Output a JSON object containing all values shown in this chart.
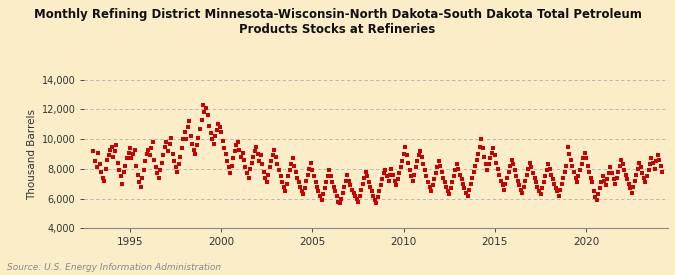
{
  "title": "Monthly Refining District Minnesota-Wisconsin-North Dakota-South Dakota Total Petroleum\nProducts Stocks at Refineries",
  "ylabel": "Thousand Barrels",
  "source": "Source: U.S. Energy Information Administration",
  "background_color": "#faedc8",
  "dot_color": "#cc0000",
  "ylim": [
    4000,
    14000
  ],
  "yticks": [
    4000,
    6000,
    8000,
    10000,
    12000,
    14000
  ],
  "xlim_start": 1992.5,
  "xlim_end": 2024.5,
  "xticks": [
    1995,
    2000,
    2005,
    2010,
    2015,
    2020
  ],
  "data_points": [
    [
      1993.0,
      9200
    ],
    [
      1993.08,
      8500
    ],
    [
      1993.17,
      8100
    ],
    [
      1993.25,
      9100
    ],
    [
      1993.33,
      8300
    ],
    [
      1993.42,
      7800
    ],
    [
      1993.5,
      7400
    ],
    [
      1993.58,
      7200
    ],
    [
      1993.67,
      8000
    ],
    [
      1993.75,
      8600
    ],
    [
      1993.83,
      8900
    ],
    [
      1993.92,
      9300
    ],
    [
      1994.0,
      9500
    ],
    [
      1994.08,
      8800
    ],
    [
      1994.17,
      9200
    ],
    [
      1994.25,
      9600
    ],
    [
      1994.33,
      8400
    ],
    [
      1994.42,
      7900
    ],
    [
      1994.5,
      7500
    ],
    [
      1994.58,
      7000
    ],
    [
      1994.67,
      7800
    ],
    [
      1994.75,
      8200
    ],
    [
      1994.83,
      8700
    ],
    [
      1994.92,
      9100
    ],
    [
      1995.0,
      9400
    ],
    [
      1995.08,
      8700
    ],
    [
      1995.17,
      9000
    ],
    [
      1995.25,
      9300
    ],
    [
      1995.33,
      8200
    ],
    [
      1995.42,
      7600
    ],
    [
      1995.5,
      7100
    ],
    [
      1995.58,
      6800
    ],
    [
      1995.67,
      7400
    ],
    [
      1995.75,
      7900
    ],
    [
      1995.83,
      8500
    ],
    [
      1995.92,
      9000
    ],
    [
      1996.0,
      9300
    ],
    [
      1996.08,
      8900
    ],
    [
      1996.17,
      9400
    ],
    [
      1996.25,
      9800
    ],
    [
      1996.33,
      8600
    ],
    [
      1996.42,
      8100
    ],
    [
      1996.5,
      7700
    ],
    [
      1996.58,
      7400
    ],
    [
      1996.67,
      7900
    ],
    [
      1996.75,
      8400
    ],
    [
      1996.83,
      8900
    ],
    [
      1996.92,
      9500
    ],
    [
      1997.0,
      9800
    ],
    [
      1997.08,
      9200
    ],
    [
      1997.17,
      9700
    ],
    [
      1997.25,
      10100
    ],
    [
      1997.33,
      9000
    ],
    [
      1997.42,
      8500
    ],
    [
      1997.5,
      8100
    ],
    [
      1997.58,
      7800
    ],
    [
      1997.67,
      8300
    ],
    [
      1997.75,
      8800
    ],
    [
      1997.83,
      9400
    ],
    [
      1997.92,
      10000
    ],
    [
      1998.0,
      10500
    ],
    [
      1998.08,
      10000
    ],
    [
      1998.17,
      10800
    ],
    [
      1998.25,
      11200
    ],
    [
      1998.33,
      10200
    ],
    [
      1998.42,
      9700
    ],
    [
      1998.5,
      9300
    ],
    [
      1998.58,
      9000
    ],
    [
      1998.67,
      9600
    ],
    [
      1998.75,
      10100
    ],
    [
      1998.83,
      10700
    ],
    [
      1998.92,
      11300
    ],
    [
      1999.0,
      12300
    ],
    [
      1999.08,
      11800
    ],
    [
      1999.17,
      12100
    ],
    [
      1999.25,
      11600
    ],
    [
      1999.33,
      10900
    ],
    [
      1999.42,
      10400
    ],
    [
      1999.5,
      10000
    ],
    [
      1999.58,
      9700
    ],
    [
      1999.67,
      10200
    ],
    [
      1999.75,
      10600
    ],
    [
      1999.83,
      11000
    ],
    [
      1999.92,
      10800
    ],
    [
      2000.0,
      10500
    ],
    [
      2000.08,
      9900
    ],
    [
      2000.17,
      9400
    ],
    [
      2000.25,
      9000
    ],
    [
      2000.33,
      8500
    ],
    [
      2000.42,
      8100
    ],
    [
      2000.5,
      7700
    ],
    [
      2000.58,
      8200
    ],
    [
      2000.67,
      8700
    ],
    [
      2000.75,
      9200
    ],
    [
      2000.83,
      9600
    ],
    [
      2000.92,
      9800
    ],
    [
      2001.0,
      9300
    ],
    [
      2001.08,
      8800
    ],
    [
      2001.17,
      9100
    ],
    [
      2001.25,
      8600
    ],
    [
      2001.33,
      8100
    ],
    [
      2001.42,
      7700
    ],
    [
      2001.5,
      7400
    ],
    [
      2001.58,
      8000
    ],
    [
      2001.67,
      8400
    ],
    [
      2001.75,
      8800
    ],
    [
      2001.83,
      9200
    ],
    [
      2001.92,
      9500
    ],
    [
      2002.0,
      9000
    ],
    [
      2002.08,
      8500
    ],
    [
      2002.17,
      8900
    ],
    [
      2002.25,
      8300
    ],
    [
      2002.33,
      7800
    ],
    [
      2002.42,
      7400
    ],
    [
      2002.5,
      7100
    ],
    [
      2002.58,
      7600
    ],
    [
      2002.67,
      8100
    ],
    [
      2002.75,
      8500
    ],
    [
      2002.83,
      8900
    ],
    [
      2002.92,
      9300
    ],
    [
      2003.0,
      8800
    ],
    [
      2003.08,
      8300
    ],
    [
      2003.17,
      7900
    ],
    [
      2003.25,
      7500
    ],
    [
      2003.33,
      7100
    ],
    [
      2003.42,
      6800
    ],
    [
      2003.5,
      6500
    ],
    [
      2003.58,
      7000
    ],
    [
      2003.67,
      7500
    ],
    [
      2003.75,
      7900
    ],
    [
      2003.83,
      8300
    ],
    [
      2003.92,
      8700
    ],
    [
      2004.0,
      8200
    ],
    [
      2004.08,
      7800
    ],
    [
      2004.17,
      7400
    ],
    [
      2004.25,
      7100
    ],
    [
      2004.33,
      6800
    ],
    [
      2004.42,
      6500
    ],
    [
      2004.5,
      6300
    ],
    [
      2004.58,
      6700
    ],
    [
      2004.67,
      7200
    ],
    [
      2004.75,
      7600
    ],
    [
      2004.83,
      8000
    ],
    [
      2004.92,
      8400
    ],
    [
      2005.0,
      7900
    ],
    [
      2005.08,
      7500
    ],
    [
      2005.17,
      7100
    ],
    [
      2005.25,
      6800
    ],
    [
      2005.33,
      6500
    ],
    [
      2005.42,
      6200
    ],
    [
      2005.5,
      5900
    ],
    [
      2005.58,
      6300
    ],
    [
      2005.67,
      6700
    ],
    [
      2005.75,
      7100
    ],
    [
      2005.83,
      7500
    ],
    [
      2005.92,
      7900
    ],
    [
      2006.0,
      7500
    ],
    [
      2006.08,
      7100
    ],
    [
      2006.17,
      6800
    ],
    [
      2006.25,
      6500
    ],
    [
      2006.33,
      6200
    ],
    [
      2006.42,
      5800
    ],
    [
      2006.5,
      5700
    ],
    [
      2006.58,
      6000
    ],
    [
      2006.67,
      6400
    ],
    [
      2006.75,
      6800
    ],
    [
      2006.83,
      7200
    ],
    [
      2006.92,
      7600
    ],
    [
      2007.0,
      7200
    ],
    [
      2007.08,
      6900
    ],
    [
      2007.17,
      6600
    ],
    [
      2007.25,
      6400
    ],
    [
      2007.33,
      6200
    ],
    [
      2007.42,
      6000
    ],
    [
      2007.5,
      5800
    ],
    [
      2007.58,
      6200
    ],
    [
      2007.67,
      6600
    ],
    [
      2007.75,
      7000
    ],
    [
      2007.83,
      7400
    ],
    [
      2007.92,
      7800
    ],
    [
      2008.0,
      7500
    ],
    [
      2008.08,
      7100
    ],
    [
      2008.17,
      6800
    ],
    [
      2008.25,
      6500
    ],
    [
      2008.33,
      6200
    ],
    [
      2008.42,
      5900
    ],
    [
      2008.5,
      5700
    ],
    [
      2008.58,
      6100
    ],
    [
      2008.67,
      6500
    ],
    [
      2008.75,
      6900
    ],
    [
      2008.83,
      7300
    ],
    [
      2008.92,
      7700
    ],
    [
      2009.0,
      7900
    ],
    [
      2009.08,
      7500
    ],
    [
      2009.17,
      7200
    ],
    [
      2009.25,
      7600
    ],
    [
      2009.33,
      8000
    ],
    [
      2009.42,
      7600
    ],
    [
      2009.5,
      7200
    ],
    [
      2009.58,
      6900
    ],
    [
      2009.67,
      7300
    ],
    [
      2009.75,
      7700
    ],
    [
      2009.83,
      8100
    ],
    [
      2009.92,
      8500
    ],
    [
      2010.0,
      9000
    ],
    [
      2010.08,
      9500
    ],
    [
      2010.17,
      8900
    ],
    [
      2010.25,
      8400
    ],
    [
      2010.33,
      7900
    ],
    [
      2010.42,
      7500
    ],
    [
      2010.5,
      7200
    ],
    [
      2010.58,
      7600
    ],
    [
      2010.67,
      8100
    ],
    [
      2010.75,
      8500
    ],
    [
      2010.83,
      8900
    ],
    [
      2010.92,
      9200
    ],
    [
      2011.0,
      8800
    ],
    [
      2011.08,
      8300
    ],
    [
      2011.17,
      7900
    ],
    [
      2011.25,
      7500
    ],
    [
      2011.33,
      7100
    ],
    [
      2011.42,
      6800
    ],
    [
      2011.5,
      6500
    ],
    [
      2011.58,
      6900
    ],
    [
      2011.67,
      7300
    ],
    [
      2011.75,
      7700
    ],
    [
      2011.83,
      8100
    ],
    [
      2011.92,
      8500
    ],
    [
      2012.0,
      8200
    ],
    [
      2012.08,
      7800
    ],
    [
      2012.17,
      7400
    ],
    [
      2012.25,
      7100
    ],
    [
      2012.33,
      6800
    ],
    [
      2012.42,
      6500
    ],
    [
      2012.5,
      6300
    ],
    [
      2012.58,
      6700
    ],
    [
      2012.67,
      7100
    ],
    [
      2012.75,
      7500
    ],
    [
      2012.83,
      7900
    ],
    [
      2012.92,
      8300
    ],
    [
      2013.0,
      8000
    ],
    [
      2013.08,
      7600
    ],
    [
      2013.17,
      7300
    ],
    [
      2013.25,
      7000
    ],
    [
      2013.33,
      6700
    ],
    [
      2013.42,
      6400
    ],
    [
      2013.5,
      6200
    ],
    [
      2013.58,
      6600
    ],
    [
      2013.67,
      7000
    ],
    [
      2013.75,
      7400
    ],
    [
      2013.83,
      7800
    ],
    [
      2013.92,
      8200
    ],
    [
      2014.0,
      8600
    ],
    [
      2014.08,
      9000
    ],
    [
      2014.17,
      9500
    ],
    [
      2014.25,
      10000
    ],
    [
      2014.33,
      9400
    ],
    [
      2014.42,
      8800
    ],
    [
      2014.5,
      8300
    ],
    [
      2014.58,
      7900
    ],
    [
      2014.67,
      8300
    ],
    [
      2014.75,
      8700
    ],
    [
      2014.83,
      9100
    ],
    [
      2014.92,
      9400
    ],
    [
      2015.0,
      8900
    ],
    [
      2015.08,
      8400
    ],
    [
      2015.17,
      8000
    ],
    [
      2015.25,
      7600
    ],
    [
      2015.33,
      7200
    ],
    [
      2015.42,
      6900
    ],
    [
      2015.5,
      6600
    ],
    [
      2015.58,
      7000
    ],
    [
      2015.67,
      7400
    ],
    [
      2015.75,
      7800
    ],
    [
      2015.83,
      8200
    ],
    [
      2015.92,
      8600
    ],
    [
      2016.0,
      8300
    ],
    [
      2016.08,
      7900
    ],
    [
      2016.17,
      7500
    ],
    [
      2016.25,
      7200
    ],
    [
      2016.33,
      6900
    ],
    [
      2016.42,
      6600
    ],
    [
      2016.5,
      6400
    ],
    [
      2016.58,
      6800
    ],
    [
      2016.67,
      7200
    ],
    [
      2016.75,
      7600
    ],
    [
      2016.83,
      8000
    ],
    [
      2016.92,
      8400
    ],
    [
      2017.0,
      8100
    ],
    [
      2017.08,
      7700
    ],
    [
      2017.17,
      7400
    ],
    [
      2017.25,
      7100
    ],
    [
      2017.33,
      6800
    ],
    [
      2017.42,
      6500
    ],
    [
      2017.5,
      6300
    ],
    [
      2017.58,
      6700
    ],
    [
      2017.67,
      7100
    ],
    [
      2017.75,
      7500
    ],
    [
      2017.83,
      7900
    ],
    [
      2017.92,
      8300
    ],
    [
      2018.0,
      8000
    ],
    [
      2018.08,
      7600
    ],
    [
      2018.17,
      7300
    ],
    [
      2018.25,
      7000
    ],
    [
      2018.33,
      6700
    ],
    [
      2018.42,
      6500
    ],
    [
      2018.5,
      6200
    ],
    [
      2018.58,
      6600
    ],
    [
      2018.67,
      7000
    ],
    [
      2018.75,
      7400
    ],
    [
      2018.83,
      7800
    ],
    [
      2018.92,
      8200
    ],
    [
      2019.0,
      9500
    ],
    [
      2019.08,
      9000
    ],
    [
      2019.17,
      8600
    ],
    [
      2019.25,
      8200
    ],
    [
      2019.33,
      7800
    ],
    [
      2019.42,
      7400
    ],
    [
      2019.5,
      7100
    ],
    [
      2019.58,
      7500
    ],
    [
      2019.67,
      7900
    ],
    [
      2019.75,
      8300
    ],
    [
      2019.83,
      8700
    ],
    [
      2019.92,
      9100
    ],
    [
      2020.0,
      8700
    ],
    [
      2020.08,
      8200
    ],
    [
      2020.17,
      7800
    ],
    [
      2020.25,
      7400
    ],
    [
      2020.33,
      7100
    ],
    [
      2020.42,
      6500
    ],
    [
      2020.5,
      6100
    ],
    [
      2020.58,
      5900
    ],
    [
      2020.67,
      6300
    ],
    [
      2020.75,
      6700
    ],
    [
      2020.83,
      7100
    ],
    [
      2020.92,
      7500
    ],
    [
      2021.0,
      7200
    ],
    [
      2021.08,
      6900
    ],
    [
      2021.17,
      7300
    ],
    [
      2021.25,
      7700
    ],
    [
      2021.33,
      8100
    ],
    [
      2021.42,
      7700
    ],
    [
      2021.5,
      7300
    ],
    [
      2021.58,
      7000
    ],
    [
      2021.67,
      7400
    ],
    [
      2021.75,
      7800
    ],
    [
      2021.83,
      8200
    ],
    [
      2021.92,
      8600
    ],
    [
      2022.0,
      8300
    ],
    [
      2022.08,
      7900
    ],
    [
      2022.17,
      7600
    ],
    [
      2022.25,
      7300
    ],
    [
      2022.33,
      7000
    ],
    [
      2022.42,
      6700
    ],
    [
      2022.5,
      6400
    ],
    [
      2022.58,
      6800
    ],
    [
      2022.67,
      7200
    ],
    [
      2022.75,
      7600
    ],
    [
      2022.83,
      8000
    ],
    [
      2022.92,
      8400
    ],
    [
      2023.0,
      8100
    ],
    [
      2023.08,
      7700
    ],
    [
      2023.17,
      7400
    ],
    [
      2023.25,
      7100
    ],
    [
      2023.33,
      7500
    ],
    [
      2023.42,
      7900
    ],
    [
      2023.5,
      8300
    ],
    [
      2023.58,
      8700
    ],
    [
      2023.67,
      8400
    ],
    [
      2023.75,
      8000
    ],
    [
      2023.83,
      8500
    ],
    [
      2023.92,
      8900
    ],
    [
      2024.0,
      8600
    ],
    [
      2024.08,
      8200
    ],
    [
      2024.17,
      7800
    ]
  ]
}
